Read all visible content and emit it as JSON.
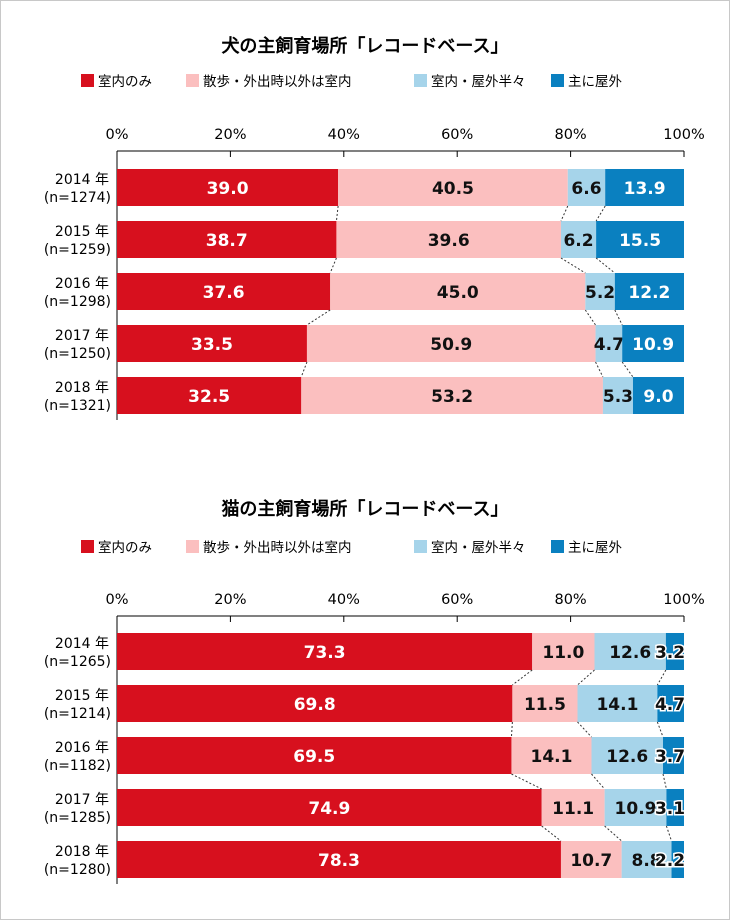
{
  "colors": {
    "indoor_only": "#d7101e",
    "indoor_except_walks": "#fbbfbf",
    "half": "#a6d4ea",
    "mostly_outdoor": "#0a80c0"
  },
  "chart_data": [
    {
      "type": "bar",
      "orientation": "horizontal-stacked-100",
      "title": "犬の主飼育場所「レコードベース」",
      "legend_position": "top",
      "xlim": [
        0,
        100
      ],
      "xticks": [
        "0%",
        "20%",
        "40%",
        "60%",
        "80%",
        "100%"
      ],
      "categories": [
        {
          "year": "2014 年",
          "n": "(n=1274)"
        },
        {
          "year": "2015 年",
          "n": "(n=1259)"
        },
        {
          "year": "2016 年",
          "n": "(n=1298)"
        },
        {
          "year": "2017 年",
          "n": "(n=1250)"
        },
        {
          "year": "2018 年",
          "n": "(n=1321)"
        }
      ],
      "series": [
        {
          "name": "室内のみ",
          "values": [
            39.0,
            38.7,
            37.6,
            33.5,
            32.5
          ]
        },
        {
          "name": "散歩・外出時以外は室内",
          "values": [
            40.5,
            39.6,
            45.0,
            50.9,
            53.2
          ]
        },
        {
          "name": "室内・屋外半々",
          "values": [
            6.6,
            6.2,
            5.2,
            4.7,
            5.3
          ]
        },
        {
          "name": "主に屋外",
          "values": [
            13.9,
            15.5,
            12.2,
            10.9,
            9.0
          ]
        }
      ]
    },
    {
      "type": "bar",
      "orientation": "horizontal-stacked-100",
      "title": "猫の主飼育場所「レコードベース」",
      "legend_position": "top",
      "xlim": [
        0,
        100
      ],
      "xticks": [
        "0%",
        "20%",
        "40%",
        "60%",
        "80%",
        "100%"
      ],
      "categories": [
        {
          "year": "2014 年",
          "n": "(n=1265)"
        },
        {
          "year": "2015 年",
          "n": "(n=1214)"
        },
        {
          "year": "2016 年",
          "n": "(n=1182)"
        },
        {
          "year": "2017 年",
          "n": "(n=1285)"
        },
        {
          "year": "2018 年",
          "n": "(n=1280)"
        }
      ],
      "series": [
        {
          "name": "室内のみ",
          "values": [
            73.3,
            69.8,
            69.5,
            74.9,
            78.3
          ]
        },
        {
          "name": "散歩・外出時以外は室内",
          "values": [
            11.0,
            11.5,
            14.1,
            11.1,
            10.7
          ]
        },
        {
          "name": "室内・屋外半々",
          "values": [
            12.6,
            14.1,
            12.6,
            10.9,
            8.8
          ]
        },
        {
          "name": "主に屋外",
          "values": [
            3.2,
            4.7,
            3.7,
            3.1,
            2.2
          ]
        }
      ]
    }
  ]
}
